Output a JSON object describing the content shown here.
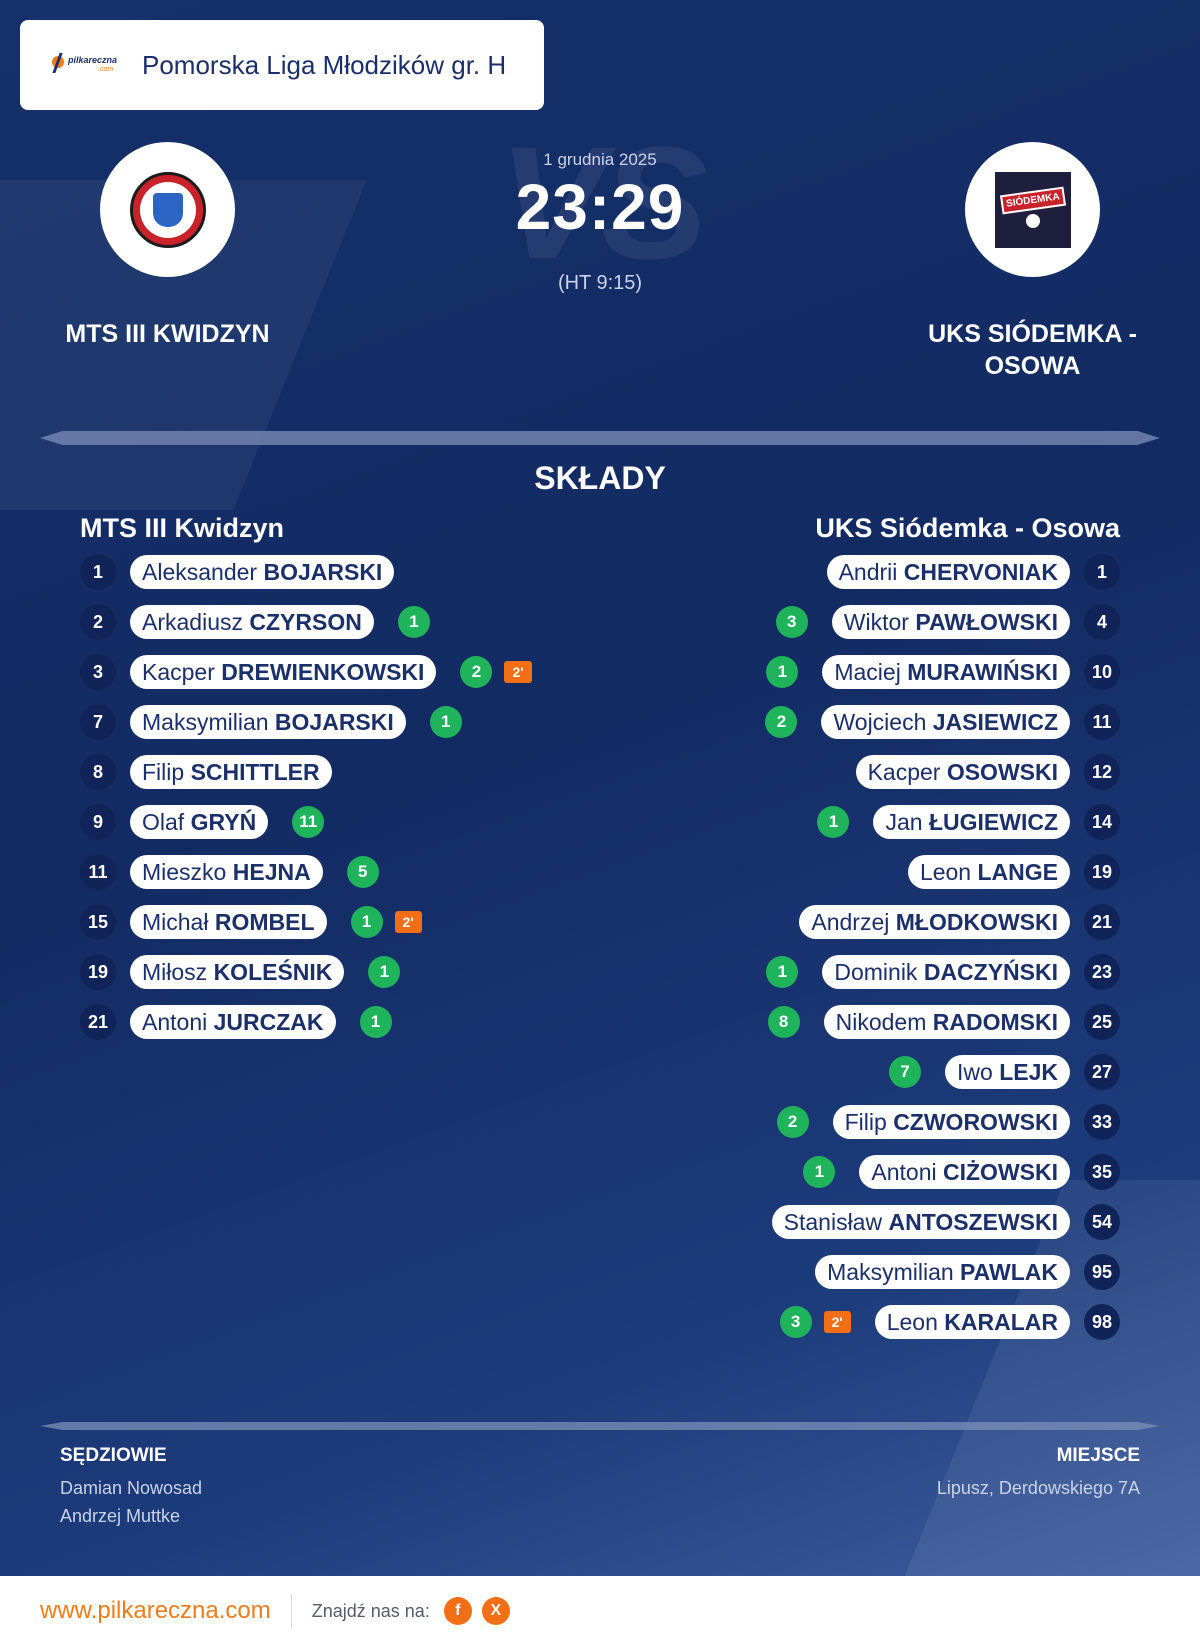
{
  "league": {
    "logo_text": "pilkareczna",
    "logo_sub": ".com",
    "name": "Pomorska Liga Młodzików gr. H"
  },
  "match": {
    "date": "1 grudnia 2025",
    "score": "23:29",
    "halftime": "(HT 9:15)",
    "vs": "VS"
  },
  "home_team": {
    "name": "MTS III KWIDZYN",
    "lineup_title": "MTS III Kwidzyn",
    "players": [
      {
        "num": "1",
        "first": "Aleksander",
        "last": "BOJARSKI",
        "goals": "",
        "susp": ""
      },
      {
        "num": "2",
        "first": "Arkadiusz",
        "last": "CZYRSON",
        "goals": "1",
        "susp": ""
      },
      {
        "num": "3",
        "first": "Kacper",
        "last": "DREWIENKOWSKI",
        "goals": "2",
        "susp": "2'"
      },
      {
        "num": "7",
        "first": "Maksymilian",
        "last": "BOJARSKI",
        "goals": "1",
        "susp": ""
      },
      {
        "num": "8",
        "first": "Filip",
        "last": "SCHITTLER",
        "goals": "",
        "susp": ""
      },
      {
        "num": "9",
        "first": "Olaf",
        "last": "GRYŃ",
        "goals": "11",
        "susp": ""
      },
      {
        "num": "11",
        "first": "Mieszko",
        "last": "HEJNA",
        "goals": "5",
        "susp": ""
      },
      {
        "num": "15",
        "first": "Michał",
        "last": "ROMBEL",
        "goals": "1",
        "susp": "2'"
      },
      {
        "num": "19",
        "first": "Miłosz",
        "last": "KOLEŚNIK",
        "goals": "1",
        "susp": ""
      },
      {
        "num": "21",
        "first": "Antoni",
        "last": "JURCZAK",
        "goals": "1",
        "susp": ""
      }
    ]
  },
  "away_team": {
    "name": "UKS SIÓDEMKA - OSOWA",
    "lineup_title": "UKS Siódemka - Osowa",
    "crest_text": "SIÓDEMKA",
    "players": [
      {
        "num": "1",
        "first": "Andrii",
        "last": "CHERVONIAK",
        "goals": "",
        "susp": ""
      },
      {
        "num": "4",
        "first": "Wiktor",
        "last": "PAWŁOWSKI",
        "goals": "3",
        "susp": ""
      },
      {
        "num": "10",
        "first": "Maciej",
        "last": "MURAWIŃSKI",
        "goals": "1",
        "susp": ""
      },
      {
        "num": "11",
        "first": "Wojciech",
        "last": "JASIEWICZ",
        "goals": "2",
        "susp": ""
      },
      {
        "num": "12",
        "first": "Kacper",
        "last": "OSOWSKI",
        "goals": "",
        "susp": ""
      },
      {
        "num": "14",
        "first": "Jan",
        "last": "ŁUGIEWICZ",
        "goals": "1",
        "susp": ""
      },
      {
        "num": "19",
        "first": "Leon",
        "last": "LANGE",
        "goals": "",
        "susp": ""
      },
      {
        "num": "21",
        "first": "Andrzej",
        "last": "MŁODKOWSKI",
        "goals": "",
        "susp": ""
      },
      {
        "num": "23",
        "first": "Dominik",
        "last": "DACZYŃSKI",
        "goals": "1",
        "susp": ""
      },
      {
        "num": "25",
        "first": "Nikodem",
        "last": "RADOMSKI",
        "goals": "8",
        "susp": ""
      },
      {
        "num": "27",
        "first": "Iwo",
        "last": "LEJK",
        "goals": "7",
        "susp": ""
      },
      {
        "num": "33",
        "first": "Filip",
        "last": "CZWOROWSKI",
        "goals": "2",
        "susp": ""
      },
      {
        "num": "35",
        "first": "Antoni",
        "last": "CIŻOWSKI",
        "goals": "1",
        "susp": ""
      },
      {
        "num": "54",
        "first": "Stanisław",
        "last": "ANTOSZEWSKI",
        "goals": "",
        "susp": ""
      },
      {
        "num": "95",
        "first": "Maksymilian",
        "last": "PAWLAK",
        "goals": "",
        "susp": ""
      },
      {
        "num": "98",
        "first": "Leon",
        "last": "KARALAR",
        "goals": "3",
        "susp": "2'"
      }
    ]
  },
  "section_title": "SKŁADY",
  "referees": {
    "title": "SĘDZIOWIE",
    "names": [
      "Damian Nowosad",
      "Andrzej Muttke"
    ]
  },
  "venue": {
    "title": "MIEJSCE",
    "value": "Lipusz, Derdowskiego 7A"
  },
  "footer": {
    "url": "www.pilkareczna.com",
    "find_label": "Znajdź nas na:",
    "social": [
      "f",
      "X"
    ]
  },
  "colors": {
    "goal_badge": "#1fb35b",
    "suspension_badge": "#f36f16",
    "accent": "#f07b1a",
    "background": "#15306a"
  }
}
